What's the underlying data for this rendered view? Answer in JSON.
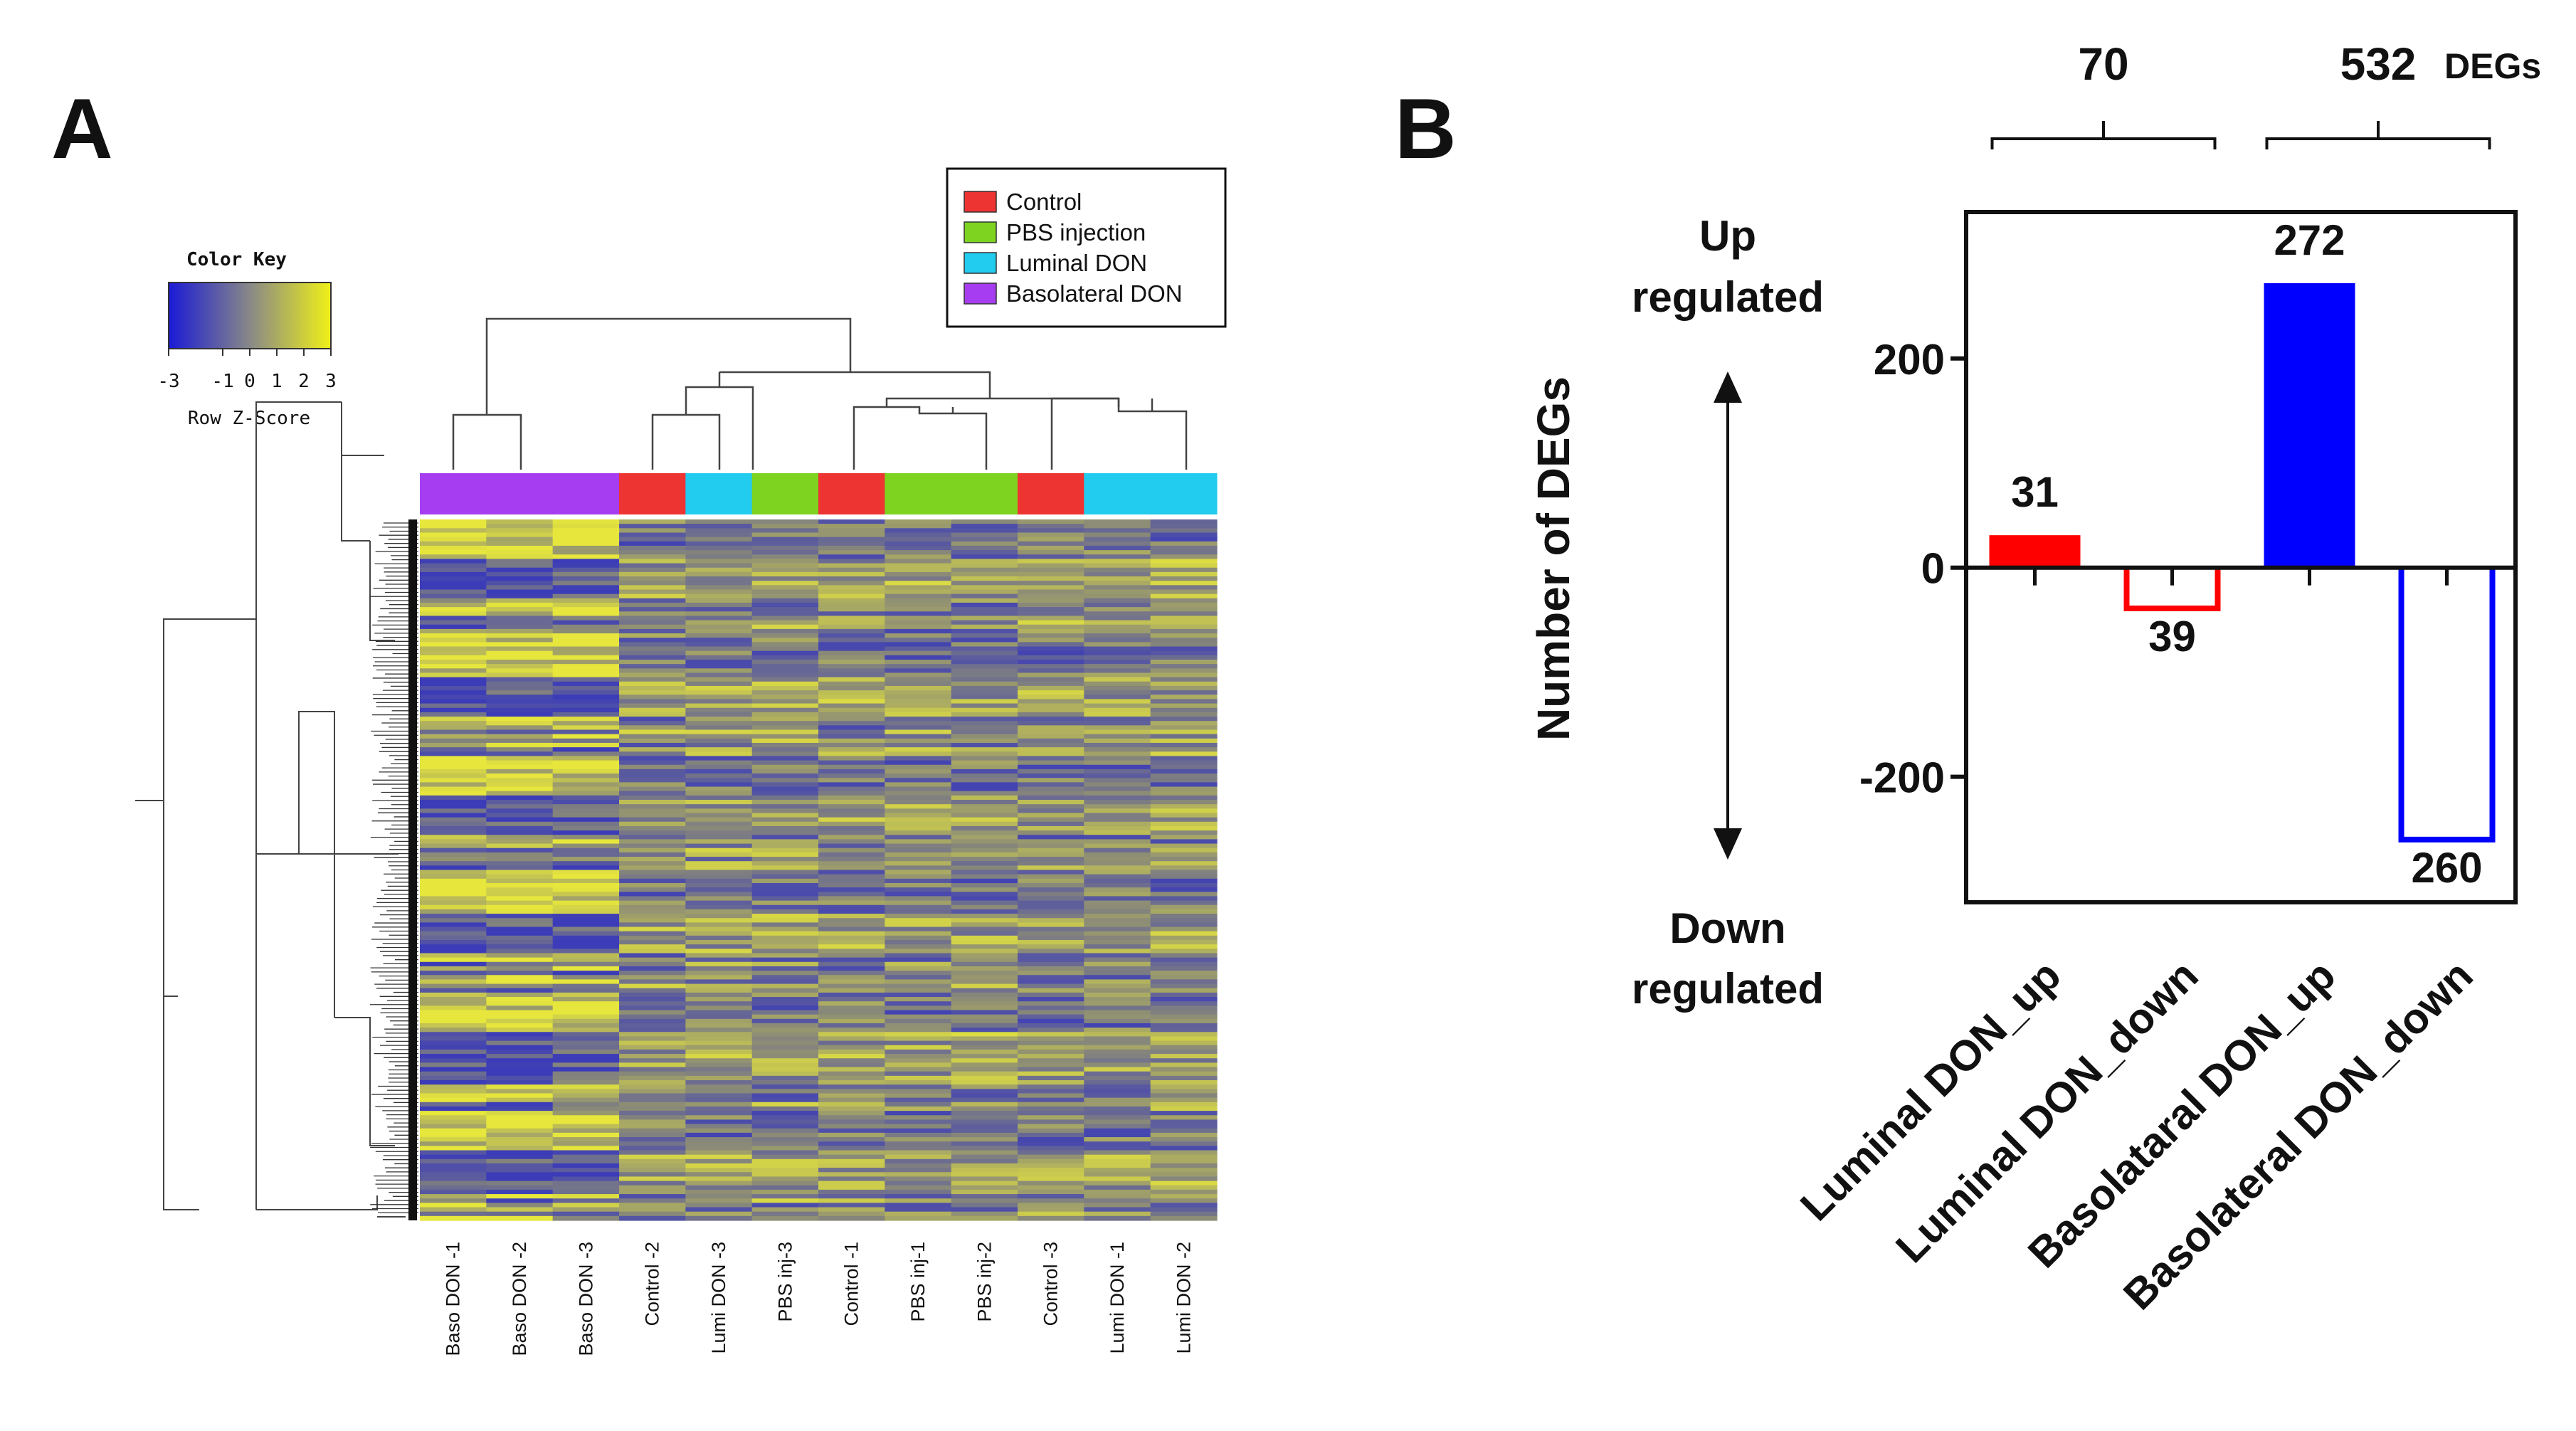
{
  "panels": {
    "a": "A",
    "b": "B"
  },
  "heatmap": {
    "color_key_title": "Color Key",
    "color_key_label": "Row Z-Score",
    "color_key_ticks": [
      "-3",
      "-1",
      "0",
      "1",
      "2",
      "3"
    ],
    "colors": {
      "low": "#1a1ad6",
      "mid": "#888888",
      "high": "#f0f018"
    },
    "legend": [
      {
        "label": "Control",
        "color": "#ee3333"
      },
      {
        "label": "PBS injection",
        "color": "#7dd320"
      },
      {
        "label": "Luminal DON",
        "color": "#22ccee"
      },
      {
        "label": "Basolateral DON",
        "color": "#a63df0"
      }
    ],
    "samples": [
      {
        "label": "Baso DON -1",
        "group": "Basolateral DON"
      },
      {
        "label": "Baso DON -2",
        "group": "Basolateral DON"
      },
      {
        "label": "Baso DON -3",
        "group": "Basolateral DON"
      },
      {
        "label": "Control -2",
        "group": "Control"
      },
      {
        "label": "Lumi DON -3",
        "group": "Luminal DON"
      },
      {
        "label": "PBS inj-3",
        "group": "PBS injection"
      },
      {
        "label": "Control -1",
        "group": "Control"
      },
      {
        "label": "PBS inj-1",
        "group": "PBS injection"
      },
      {
        "label": "PBS inj-2",
        "group": "PBS injection"
      },
      {
        "label": "Control -3",
        "group": "Control"
      },
      {
        "label": "Lumi DON -1",
        "group": "Luminal DON"
      },
      {
        "label": "Lumi DON -2",
        "group": "Luminal DON"
      }
    ]
  },
  "chart_data": {
    "type": "bar",
    "title": "",
    "ylabel": "Number of DEGs",
    "xlabel": "",
    "ylim": [
      -320,
      340
    ],
    "yticks": [
      -200,
      0,
      200
    ],
    "ytick_labels": [
      "-200",
      "0",
      "200"
    ],
    "categories": [
      "Luminal DON_up",
      "Luminal DON_down",
      "Basolataral DON_up",
      "Basolateral DON_down"
    ],
    "values": [
      31,
      -39,
      272,
      -260
    ],
    "value_labels": [
      "31",
      "39",
      "272",
      "260"
    ],
    "bar_styles": [
      {
        "color": "#ff0000",
        "filled": true
      },
      {
        "color": "#ff0000",
        "filled": false
      },
      {
        "color": "#0000ff",
        "filled": true
      },
      {
        "color": "#0000ff",
        "filled": false
      }
    ],
    "groups": [
      {
        "total": "70",
        "members": [
          0,
          1
        ]
      },
      {
        "total": "532",
        "members": [
          2,
          3
        ]
      }
    ],
    "group_unit": "DEGs",
    "up_label": [
      "Up",
      "regulated"
    ],
    "down_label": [
      "Down",
      "regulated"
    ]
  }
}
